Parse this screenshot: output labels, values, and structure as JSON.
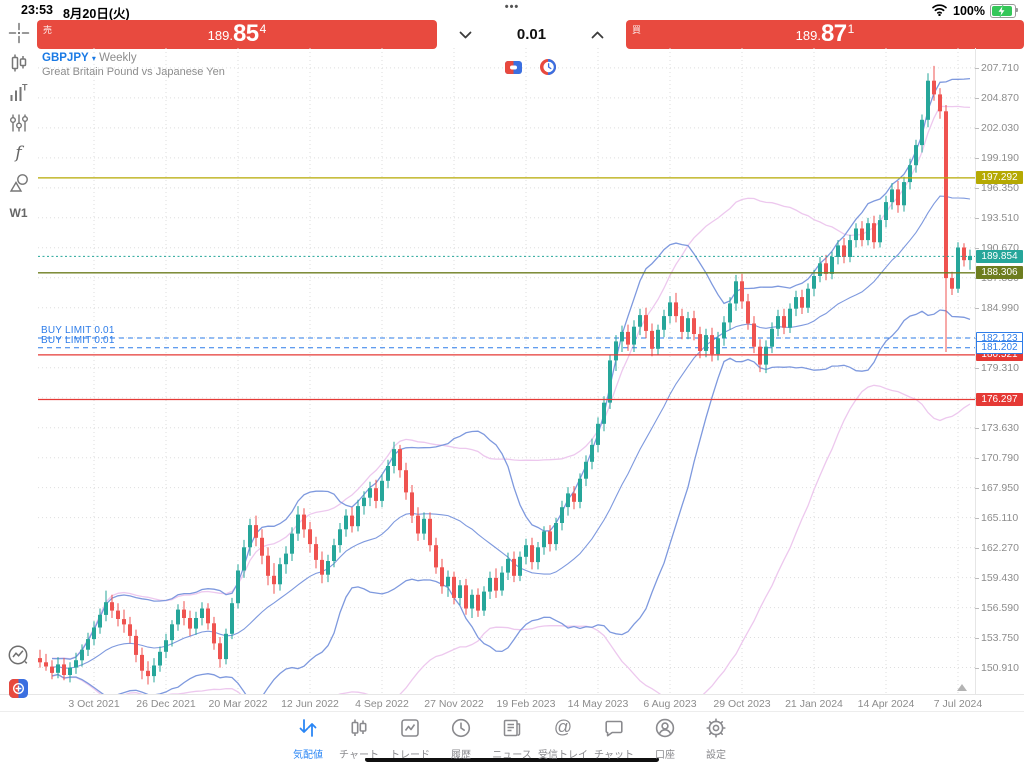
{
  "status_bar": {
    "time": "23:53",
    "date": "8月20日(火)",
    "dots": "•••",
    "battery_pct": "100%"
  },
  "trade_panel": {
    "sell_tag": "売",
    "buy_tag": "買",
    "volume": "0.01",
    "sell_price": {
      "prefix": "189.",
      "big": "85",
      "sup": "4"
    },
    "buy_price": {
      "prefix": "189.",
      "big": "87",
      "sup": "1"
    }
  },
  "symbol_header": {
    "symbol": "GBPJPY",
    "caret": "▾",
    "timeframe": "Weekly",
    "description": "Great Britain Pound vs Japanese Yen"
  },
  "left_toolbar": {
    "timeframe_label": "W1",
    "function_label": "f"
  },
  "colors": {
    "accent_red": "#e84a3f",
    "accent_blue": "#2b87f5",
    "nav_inactive": "#8a8a8e",
    "candle_up": "#26a69a",
    "candle_down": "#ef5350",
    "band_blue": "#7e99de",
    "band_pink": "#edc8ee",
    "tag_yellow": "#b5a902",
    "tag_olive": "#6d7d1f",
    "tag_red": "#e53935",
    "pending_blue": "#2e7de9",
    "bid_teal": "#26a69a",
    "axis_text": "#8c8c8c"
  },
  "chart_data": {
    "type": "candlestick",
    "symbol": "GBPJPY",
    "timeframe": "W1",
    "y_axis": {
      "ylim": [
        148.4,
        209.6
      ],
      "ticks": [
        "207.710",
        "204.870",
        "202.030",
        "199.190",
        "196.350",
        "193.510",
        "190.670",
        "187.830",
        "184.990",
        "182.150",
        "179.310",
        "176.470",
        "173.630",
        "170.790",
        "167.950",
        "165.110",
        "162.270",
        "159.430",
        "156.590",
        "153.750",
        "150.910"
      ]
    },
    "x_axis": {
      "labels": [
        [
          "3 Oct 2021",
          9
        ],
        [
          "26 Dec 2021",
          21
        ],
        [
          "20 Mar 2022",
          33
        ],
        [
          "12 Jun 2022",
          45
        ],
        [
          "4 Sep 2022",
          57
        ],
        [
          "27 Nov 2022",
          69
        ],
        [
          "19 Feb 2023",
          81
        ],
        [
          "14 May 2023",
          93
        ],
        [
          "6 Aug 2023",
          105
        ],
        [
          "29 Oct 2023",
          117
        ],
        [
          "21 Jan 2024",
          129
        ],
        [
          "14 Apr 2024",
          141
        ],
        [
          "7 Jul 2024",
          153
        ]
      ]
    },
    "indicators": [
      {
        "name": "bollinger-slow",
        "period": 44,
        "deviation": 2.1,
        "color": "#edc8ee",
        "middle": false
      },
      {
        "name": "bollinger-20",
        "period": 20,
        "deviation": 2.0,
        "color": "#7e99de",
        "middle": true
      }
    ],
    "levels": [
      {
        "label": "197.292",
        "value": 197.292,
        "style": "solid",
        "color": "#b5a902",
        "tag": "filled",
        "kind": "line"
      },
      {
        "label": "188.306",
        "value": 188.306,
        "style": "solid",
        "color": "#6d7d1f",
        "tag": "filled",
        "kind": "line"
      },
      {
        "label": "180.521",
        "value": 180.521,
        "style": "solid",
        "color": "#e53935",
        "tag": "filled",
        "kind": "line"
      },
      {
        "label": "176.297",
        "value": 176.297,
        "style": "solid",
        "color": "#e53935",
        "tag": "filled",
        "kind": "line"
      },
      {
        "label": "182.123",
        "value": 182.123,
        "style": "dashed",
        "color": "#2e7de9",
        "tag": "outline",
        "kind": "pending",
        "text": "BUY LIMIT 0.01"
      },
      {
        "label": "181.202",
        "value": 181.202,
        "style": "dashed",
        "color": "#2e7de9",
        "tag": "outline",
        "kind": "pending",
        "text": "BUY LIMIT 0.01"
      },
      {
        "label": "189.854",
        "value": 189.854,
        "style": "dotted",
        "color": "#26a69a",
        "tag": "filled",
        "kind": "bid"
      }
    ],
    "candles": [
      [
        151.8,
        152.6,
        150.9,
        151.4
      ],
      [
        151.4,
        152.2,
        150.6,
        151.0
      ],
      [
        151.0,
        151.6,
        149.8,
        150.4
      ],
      [
        150.4,
        151.9,
        149.9,
        151.2
      ],
      [
        151.2,
        151.8,
        149.7,
        150.2
      ],
      [
        150.2,
        151.4,
        149.5,
        150.9
      ],
      [
        150.9,
        152.3,
        150.3,
        151.6
      ],
      [
        151.6,
        153.1,
        151.0,
        152.6
      ],
      [
        152.6,
        154.2,
        152.0,
        153.6
      ],
      [
        153.6,
        155.3,
        153.0,
        154.7
      ],
      [
        154.7,
        156.5,
        154.1,
        155.9
      ],
      [
        155.9,
        158.2,
        155.3,
        157.1
      ],
      [
        157.1,
        157.8,
        155.6,
        156.3
      ],
      [
        156.3,
        157.0,
        154.8,
        155.5
      ],
      [
        155.5,
        156.4,
        154.2,
        155.0
      ],
      [
        155.0,
        155.7,
        153.2,
        153.9
      ],
      [
        153.9,
        154.5,
        151.4,
        152.1
      ],
      [
        152.1,
        152.8,
        149.8,
        150.6
      ],
      [
        150.6,
        151.5,
        149.3,
        150.1
      ],
      [
        150.1,
        151.8,
        149.5,
        151.1
      ],
      [
        151.1,
        152.9,
        150.5,
        152.4
      ],
      [
        152.4,
        154.1,
        151.8,
        153.5
      ],
      [
        153.5,
        155.4,
        152.9,
        155.0
      ],
      [
        155.0,
        156.9,
        154.4,
        156.4
      ],
      [
        156.4,
        157.2,
        154.9,
        155.6
      ],
      [
        155.6,
        156.3,
        153.9,
        154.6
      ],
      [
        154.6,
        156.2,
        154.0,
        155.6
      ],
      [
        155.6,
        157.1,
        154.9,
        156.5
      ],
      [
        156.5,
        157.0,
        154.5,
        155.1
      ],
      [
        155.1,
        155.7,
        152.6,
        153.2
      ],
      [
        153.2,
        153.8,
        150.9,
        151.7
      ],
      [
        151.7,
        154.6,
        151.2,
        154.1
      ],
      [
        154.1,
        157.5,
        153.6,
        157.0
      ],
      [
        157.0,
        160.7,
        156.5,
        160.1
      ],
      [
        160.1,
        163.0,
        159.4,
        162.3
      ],
      [
        162.3,
        165.0,
        161.5,
        164.4
      ],
      [
        164.4,
        165.3,
        162.4,
        163.2
      ],
      [
        163.2,
        164.0,
        160.7,
        161.5
      ],
      [
        161.5,
        162.3,
        158.7,
        159.6
      ],
      [
        159.6,
        160.8,
        157.9,
        158.8
      ],
      [
        158.8,
        161.3,
        158.2,
        160.7
      ],
      [
        160.7,
        162.4,
        159.8,
        161.7
      ],
      [
        161.7,
        164.2,
        161.0,
        163.6
      ],
      [
        163.6,
        166.2,
        162.9,
        165.4
      ],
      [
        165.4,
        166.0,
        163.2,
        164.0
      ],
      [
        164.0,
        164.7,
        161.8,
        162.6
      ],
      [
        162.6,
        163.3,
        160.3,
        161.1
      ],
      [
        161.1,
        161.9,
        158.9,
        159.7
      ],
      [
        159.7,
        161.6,
        159.0,
        161.0
      ],
      [
        161.0,
        163.1,
        160.4,
        162.5
      ],
      [
        162.5,
        164.6,
        161.8,
        164.0
      ],
      [
        164.0,
        165.9,
        163.3,
        165.3
      ],
      [
        165.3,
        166.1,
        163.7,
        164.3
      ],
      [
        164.3,
        166.8,
        163.8,
        166.2
      ],
      [
        166.2,
        167.6,
        165.4,
        167.0
      ],
      [
        167.0,
        168.5,
        166.2,
        167.9
      ],
      [
        167.9,
        168.7,
        166.0,
        166.7
      ],
      [
        166.7,
        169.2,
        166.1,
        168.6
      ],
      [
        168.6,
        170.6,
        167.9,
        170.0
      ],
      [
        170.0,
        172.3,
        169.3,
        171.6
      ],
      [
        171.6,
        172.0,
        168.9,
        169.6
      ],
      [
        169.6,
        170.3,
        166.8,
        167.5
      ],
      [
        167.5,
        168.2,
        164.6,
        165.3
      ],
      [
        165.3,
        166.1,
        162.9,
        163.6
      ],
      [
        163.6,
        165.6,
        163.0,
        165.0
      ],
      [
        165.0,
        165.6,
        161.9,
        162.5
      ],
      [
        162.5,
        163.2,
        159.8,
        160.4
      ],
      [
        160.4,
        161.2,
        157.9,
        158.6
      ],
      [
        158.6,
        160.1,
        157.6,
        159.5
      ],
      [
        159.5,
        160.0,
        156.9,
        157.5
      ],
      [
        157.5,
        159.2,
        156.8,
        158.7
      ],
      [
        158.7,
        159.3,
        155.9,
        156.5
      ],
      [
        156.5,
        158.3,
        155.6,
        157.8
      ],
      [
        157.8,
        158.4,
        155.7,
        156.3
      ],
      [
        156.3,
        158.6,
        155.8,
        158.1
      ],
      [
        158.1,
        160.0,
        157.4,
        159.4
      ],
      [
        159.4,
        160.3,
        157.5,
        158.2
      ],
      [
        158.2,
        160.5,
        157.7,
        159.9
      ],
      [
        159.9,
        161.8,
        159.2,
        161.2
      ],
      [
        161.2,
        161.9,
        159.0,
        159.6
      ],
      [
        159.6,
        161.9,
        159.1,
        161.4
      ],
      [
        161.4,
        163.1,
        160.7,
        162.5
      ],
      [
        162.5,
        163.2,
        160.2,
        160.9
      ],
      [
        160.9,
        162.8,
        160.2,
        162.3
      ],
      [
        162.3,
        164.3,
        161.6,
        163.8
      ],
      [
        163.8,
        164.4,
        161.9,
        162.6
      ],
      [
        162.6,
        165.1,
        162.0,
        164.6
      ],
      [
        164.6,
        166.7,
        163.9,
        166.1
      ],
      [
        166.1,
        168.0,
        165.3,
        167.4
      ],
      [
        167.4,
        168.1,
        165.9,
        166.6
      ],
      [
        166.6,
        169.3,
        166.0,
        168.8
      ],
      [
        168.8,
        171.0,
        168.1,
        170.4
      ],
      [
        170.4,
        172.6,
        169.7,
        172.0
      ],
      [
        172.0,
        174.6,
        171.3,
        174.0
      ],
      [
        174.0,
        176.6,
        173.3,
        176.0
      ],
      [
        176.0,
        180.5,
        175.4,
        180.0
      ],
      [
        180.0,
        182.4,
        179.0,
        181.8
      ],
      [
        181.8,
        183.3,
        180.8,
        182.7
      ],
      [
        182.7,
        183.4,
        180.9,
        181.5
      ],
      [
        181.5,
        183.8,
        180.8,
        183.2
      ],
      [
        183.2,
        184.9,
        182.4,
        184.3
      ],
      [
        184.3,
        185.0,
        182.1,
        182.8
      ],
      [
        182.8,
        183.5,
        180.4,
        181.1
      ],
      [
        181.1,
        183.4,
        180.5,
        182.9
      ],
      [
        182.9,
        184.8,
        182.2,
        184.2
      ],
      [
        184.2,
        186.1,
        183.5,
        185.5
      ],
      [
        185.5,
        186.4,
        183.6,
        184.2
      ],
      [
        184.2,
        184.9,
        182.0,
        182.7
      ],
      [
        182.7,
        184.6,
        182.0,
        184.0
      ],
      [
        184.0,
        184.7,
        181.9,
        182.5
      ],
      [
        182.5,
        183.2,
        180.2,
        180.9
      ],
      [
        180.9,
        183.0,
        180.3,
        182.4
      ],
      [
        182.4,
        183.1,
        179.9,
        180.6
      ],
      [
        180.6,
        182.7,
        180.0,
        182.1
      ],
      [
        182.1,
        184.2,
        181.4,
        183.6
      ],
      [
        183.6,
        186.0,
        182.9,
        185.4
      ],
      [
        185.4,
        188.1,
        184.7,
        187.5
      ],
      [
        187.5,
        188.2,
        184.9,
        185.6
      ],
      [
        185.6,
        186.3,
        182.9,
        183.5
      ],
      [
        183.5,
        184.2,
        180.7,
        181.3
      ],
      [
        181.3,
        182.0,
        178.9,
        179.6
      ],
      [
        179.6,
        181.9,
        178.8,
        181.3
      ],
      [
        181.3,
        183.6,
        180.7,
        183.0
      ],
      [
        183.0,
        184.8,
        182.3,
        184.2
      ],
      [
        184.2,
        184.9,
        182.5,
        183.1
      ],
      [
        183.1,
        185.4,
        182.6,
        184.9
      ],
      [
        184.9,
        186.6,
        184.2,
        186.0
      ],
      [
        186.0,
        186.7,
        184.4,
        185.0
      ],
      [
        185.0,
        187.3,
        184.5,
        186.8
      ],
      [
        186.8,
        188.6,
        186.1,
        188.0
      ],
      [
        188.0,
        189.8,
        187.4,
        189.2
      ],
      [
        189.2,
        190.0,
        187.6,
        188.2
      ],
      [
        188.2,
        190.3,
        187.7,
        189.8
      ],
      [
        189.8,
        191.4,
        189.1,
        190.9
      ],
      [
        190.9,
        191.6,
        189.2,
        189.8
      ],
      [
        189.8,
        191.9,
        189.3,
        191.4
      ],
      [
        191.4,
        193.0,
        190.7,
        192.5
      ],
      [
        192.5,
        193.2,
        190.8,
        191.4
      ],
      [
        191.4,
        193.5,
        190.9,
        193.0
      ],
      [
        193.0,
        193.7,
        190.6,
        191.2
      ],
      [
        191.2,
        193.8,
        190.7,
        193.3
      ],
      [
        193.3,
        195.6,
        192.6,
        195.0
      ],
      [
        195.0,
        196.8,
        194.3,
        196.2
      ],
      [
        196.2,
        197.0,
        194.0,
        194.7
      ],
      [
        194.7,
        197.4,
        194.1,
        196.9
      ],
      [
        196.9,
        199.1,
        196.2,
        198.5
      ],
      [
        198.5,
        200.9,
        197.8,
        200.4
      ],
      [
        200.4,
        203.3,
        199.7,
        202.8
      ],
      [
        202.8,
        207.2,
        202.1,
        206.5
      ],
      [
        206.5,
        207.9,
        204.6,
        205.2
      ],
      [
        205.2,
        205.8,
        202.9,
        203.6
      ],
      [
        203.6,
        204.2,
        180.8,
        187.8
      ],
      [
        187.8,
        188.4,
        186.2,
        186.8
      ],
      [
        186.8,
        191.2,
        186.4,
        190.7
      ],
      [
        190.7,
        191.1,
        188.9,
        189.5
      ],
      [
        189.5,
        190.5,
        188.6,
        189.9
      ]
    ]
  },
  "nav_bar": {
    "items": [
      {
        "label": "気配値",
        "icon": "quotes",
        "active": true
      },
      {
        "label": "チャート",
        "icon": "chart",
        "active": false
      },
      {
        "label": "トレード",
        "icon": "trade",
        "active": false
      },
      {
        "label": "履歴",
        "icon": "history",
        "active": false
      },
      {
        "label": "ニュース",
        "icon": "news",
        "active": false
      },
      {
        "label": "受信トレイ",
        "icon": "inbox",
        "active": false
      },
      {
        "label": "チャット",
        "icon": "chat",
        "active": false
      },
      {
        "label": "口座",
        "icon": "account",
        "active": false
      },
      {
        "label": "設定",
        "icon": "settings",
        "active": false
      }
    ]
  }
}
